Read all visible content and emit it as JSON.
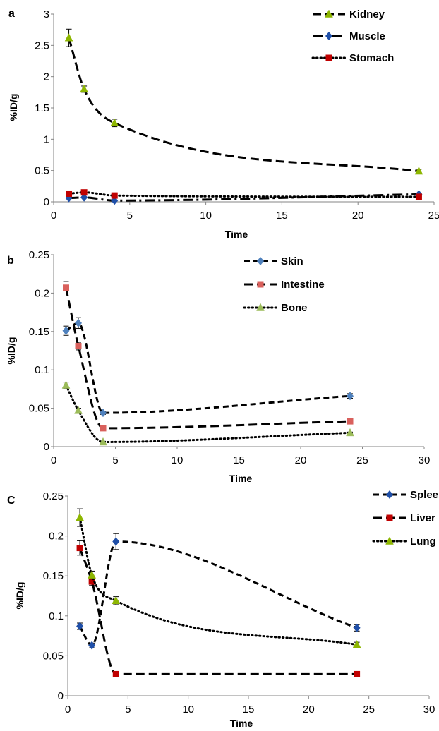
{
  "chart_data": [
    {
      "type": "line",
      "panel_label": "a",
      "xlabel": "Time",
      "ylabel": "%ID/g",
      "xlim": [
        0,
        25
      ],
      "ylim": [
        0,
        3
      ],
      "x_ticks": [
        "0",
        "5",
        "10",
        "15",
        "20",
        "25"
      ],
      "y_ticks": [
        "0",
        "0.5",
        "1",
        "1.5",
        "2",
        "2.5",
        "3"
      ],
      "grid": false,
      "legend_position": "top-right",
      "series": [
        {
          "name": "Kidney",
          "x": [
            1,
            2,
            4,
            24
          ],
          "y": [
            2.62,
            1.8,
            1.26,
            0.49
          ],
          "err": [
            0.14,
            0.05,
            0.06,
            0.03
          ],
          "color": "#8db600",
          "marker": "triangle",
          "dash": "long-dash"
        },
        {
          "name": "Muscle",
          "x": [
            1,
            2,
            4,
            24
          ],
          "y": [
            0.06,
            0.07,
            0.02,
            0.12
          ],
          "err": [
            0.01,
            0.01,
            0.01,
            0.01
          ],
          "color": "#1f4fa8",
          "marker": "diamond",
          "dash": "dash-dot"
        },
        {
          "name": "Stomach",
          "x": [
            1,
            2,
            4,
            24
          ],
          "y": [
            0.13,
            0.15,
            0.1,
            0.08
          ],
          "err": [
            0.01,
            0.01,
            0.01,
            0.01
          ],
          "color": "#c00000",
          "marker": "square",
          "dash": "dotted"
        }
      ]
    },
    {
      "type": "line",
      "panel_label": "b",
      "xlabel": "Time",
      "ylabel": "%ID/g",
      "xlim": [
        0,
        30
      ],
      "ylim": [
        0,
        0.25
      ],
      "x_ticks": [
        "0",
        "5",
        "10",
        "15",
        "20",
        "25",
        "30"
      ],
      "y_ticks": [
        "0",
        "0.05",
        "0.1",
        "0.15",
        "0.2",
        "0.25"
      ],
      "grid": false,
      "legend_position": "top-right",
      "series": [
        {
          "name": "Skin",
          "x": [
            1,
            2,
            4,
            24
          ],
          "y": [
            0.151,
            0.161,
            0.044,
            0.066
          ],
          "err": [
            0.006,
            0.007,
            0.002,
            0.003
          ],
          "color": "#4f81bd",
          "marker": "diamond",
          "dash": "dash"
        },
        {
          "name": "Intestine",
          "x": [
            1,
            2,
            4,
            24
          ],
          "y": [
            0.207,
            0.131,
            0.024,
            0.033
          ],
          "err": [
            0.008,
            0.005,
            0.002,
            0.002
          ],
          "color": "#d9605c",
          "marker": "square",
          "dash": "long-dash"
        },
        {
          "name": "Bone",
          "x": [
            1,
            2,
            4,
            24
          ],
          "y": [
            0.08,
            0.047,
            0.006,
            0.018
          ],
          "err": [
            0.004,
            0.003,
            0.001,
            0.001
          ],
          "color": "#9bbb59",
          "marker": "triangle",
          "dash": "dotted"
        }
      ]
    },
    {
      "type": "line",
      "panel_label": "C",
      "xlabel": "Time",
      "ylabel": "%ID/g",
      "xlim": [
        0,
        30
      ],
      "ylim": [
        0,
        0.25
      ],
      "x_ticks": [
        "0",
        "5",
        "10",
        "15",
        "20",
        "25",
        "30"
      ],
      "y_ticks": [
        "0",
        "0.05",
        "0.1",
        "0.15",
        "0.2",
        "0.25"
      ],
      "grid": false,
      "legend_position": "top-right",
      "series": [
        {
          "name": "Spleen",
          "x": [
            1,
            2,
            4,
            24
          ],
          "y": [
            0.087,
            0.063,
            0.193,
            0.085
          ],
          "err": [
            0.004,
            0.003,
            0.01,
            0.004
          ],
          "color": "#1f4fa8",
          "marker": "diamond",
          "dash": "dash"
        },
        {
          "name": "Liver",
          "x": [
            1,
            2,
            4,
            24
          ],
          "y": [
            0.185,
            0.143,
            0.027,
            0.027
          ],
          "err": [
            0.009,
            0.005,
            0.001,
            0.001
          ],
          "color": "#c00000",
          "marker": "square",
          "dash": "long-dash"
        },
        {
          "name": "Lung",
          "x": [
            1,
            2,
            4,
            24
          ],
          "y": [
            0.223,
            0.151,
            0.119,
            0.064
          ],
          "err": [
            0.011,
            0.005,
            0.005,
            0.003
          ],
          "color": "#8db600",
          "marker": "triangle",
          "dash": "dotted"
        }
      ]
    }
  ]
}
